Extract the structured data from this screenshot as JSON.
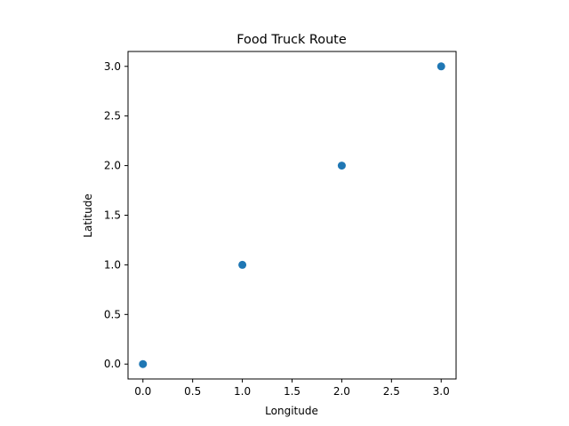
{
  "chart_data": {
    "type": "scatter",
    "title": "Food Truck Route",
    "xlabel": "Longitude",
    "ylabel": "Latitude",
    "xlim": [
      -0.15,
      3.15
    ],
    "ylim": [
      -0.15,
      3.15
    ],
    "x_ticks": [
      0.0,
      0.5,
      1.0,
      1.5,
      2.0,
      2.5,
      3.0
    ],
    "x_tick_labels": [
      "0.0",
      "0.5",
      "1.0",
      "1.5",
      "2.0",
      "2.5",
      "3.0"
    ],
    "y_ticks": [
      0.0,
      0.5,
      1.0,
      1.5,
      2.0,
      2.5,
      3.0
    ],
    "y_tick_labels": [
      "0.0",
      "0.5",
      "1.0",
      "1.5",
      "2.0",
      "2.5",
      "3.0"
    ],
    "grid": false,
    "series": [
      {
        "color": "#1f77b4",
        "x": [
          0,
          1,
          2,
          3
        ],
        "y": [
          0,
          1,
          2,
          3
        ]
      }
    ]
  }
}
